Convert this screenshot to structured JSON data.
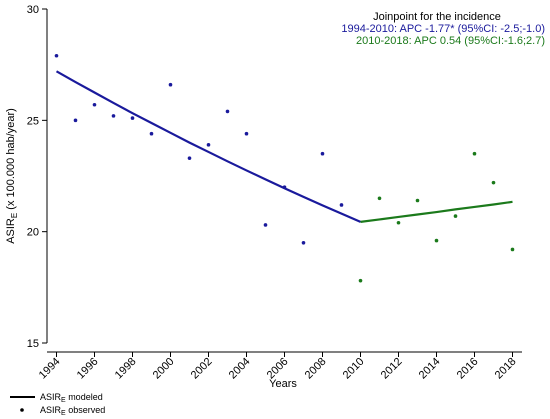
{
  "chart_data": {
    "type": "line",
    "xlabel": "Years",
    "ylabel": {
      "text": "ASIR",
      "sub": "E",
      "rest": " (x 100.000 hab/year)"
    },
    "annotations": [
      {
        "text": "Joinpoint for the incidence",
        "color": "#000000"
      },
      {
        "text": "1994-2010: APC  -1.77* (95%CI: -2.5;-1.0)",
        "color": "#1a1a9c"
      },
      {
        "text": "2010-2018: APC  0.54 (95%CI:-1.6;2.7)",
        "color": "#1b7a1b"
      }
    ],
    "xlim": [
      1993.5,
      2018.5
    ],
    "xticks": [
      1994,
      1996,
      1998,
      2000,
      2002,
      2004,
      2006,
      2008,
      2010,
      2012,
      2014,
      2016,
      2018
    ],
    "ylim": [
      15,
      30
    ],
    "yticks": [
      15,
      20,
      25,
      30
    ],
    "series": [
      {
        "mode": "markers",
        "color": "#1a1a9c",
        "x": [
          1994,
          1995,
          1996,
          1997,
          1998,
          1999,
          2000,
          2001,
          2002,
          2003,
          2004,
          2005,
          2006,
          2007,
          2008,
          2009
        ],
        "values": [
          27.9,
          25.0,
          25.7,
          25.2,
          25.1,
          24.4,
          26.6,
          23.3,
          23.9,
          25.4,
          24.4,
          20.3,
          22.0,
          19.5,
          23.5,
          21.2
        ]
      },
      {
        "mode": "markers",
        "color": "#1b7a1b",
        "x": [
          2010,
          2011,
          2012,
          2013,
          2014,
          2015,
          2016,
          2017,
          2018
        ],
        "values": [
          17.8,
          21.5,
          20.4,
          21.4,
          19.6,
          20.7,
          23.5,
          22.2,
          19.2
        ]
      },
      {
        "mode": "line",
        "color": "#1a1a9c",
        "x": [
          1994,
          1995,
          1996,
          1997,
          1998,
          1999,
          2000,
          2001,
          2002,
          2003,
          2004,
          2005,
          2006,
          2007,
          2008,
          2009,
          2010
        ],
        "values": [
          27.2,
          26.72,
          26.25,
          25.78,
          25.32,
          24.88,
          24.44,
          24.0,
          23.58,
          23.16,
          22.75,
          22.35,
          21.95,
          21.56,
          21.18,
          20.81,
          20.44
        ]
      },
      {
        "mode": "line",
        "color": "#1b7a1b",
        "x": [
          2010,
          2011,
          2012,
          2013,
          2014,
          2015,
          2016,
          2017,
          2018
        ],
        "values": [
          20.44,
          20.55,
          20.66,
          20.77,
          20.88,
          21.0,
          21.11,
          21.22,
          21.34
        ]
      }
    ],
    "legend": [
      {
        "mode": "line",
        "text": "ASIR",
        "sub": "E",
        "rest": " modeled"
      },
      {
        "mode": "markers",
        "text": "ASIR",
        "sub": "E",
        "rest": " observed"
      }
    ]
  }
}
